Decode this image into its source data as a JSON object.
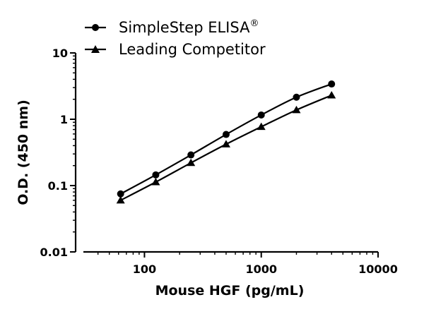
{
  "chart_data": {
    "type": "line",
    "xlabel": "Mouse HGF (pg/mL)",
    "ylabel": "O.D. (450 nm)",
    "xscale": "log",
    "yscale": "log",
    "xlim": [
      30,
      10000
    ],
    "ylim": [
      0.01,
      10
    ],
    "xticks": [
      100,
      1000,
      10000
    ],
    "xtick_labels": [
      "100",
      "1000",
      "10000"
    ],
    "yticks": [
      0.01,
      0.1,
      1,
      10
    ],
    "ytick_labels": [
      "0.01",
      "0.1",
      "1",
      "10"
    ],
    "grid": false,
    "legend_position": "top-left",
    "x": [
      62.5,
      125,
      250,
      500,
      1000,
      2000,
      4000
    ],
    "series": [
      {
        "name": "SimpleStep ELISA",
        "name_sup": "®",
        "marker": "circle",
        "color": "#000000",
        "values": [
          0.075,
          0.145,
          0.29,
          0.59,
          1.16,
          2.15,
          3.4
        ]
      },
      {
        "name": "Leading Competitor",
        "marker": "triangle",
        "color": "#000000",
        "values": [
          0.06,
          0.113,
          0.22,
          0.42,
          0.77,
          1.38,
          2.3
        ]
      }
    ]
  }
}
